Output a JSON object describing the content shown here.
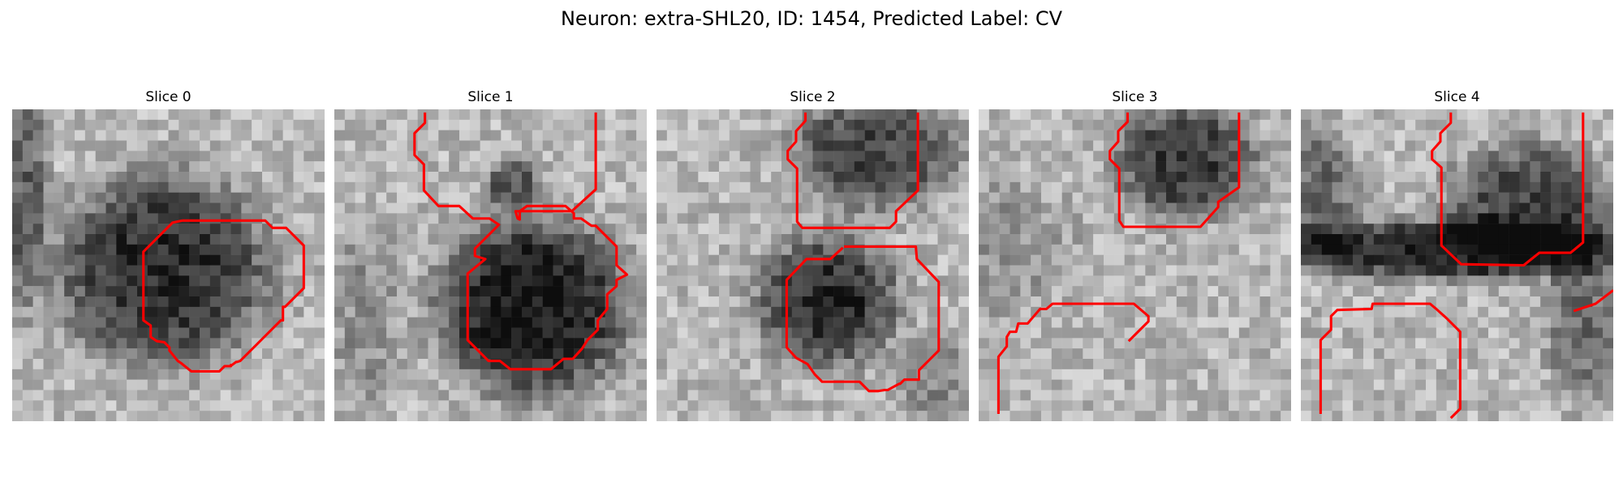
{
  "figure": {
    "title": "Neuron: extra-SHL20, ID: 1454, Predicted Label: CV"
  },
  "panels": [
    {
      "title": "Slice 0"
    },
    {
      "title": "Slice 1"
    },
    {
      "title": "Slice 2"
    },
    {
      "title": "Slice 3"
    },
    {
      "title": "Slice 4"
    }
  ],
  "colors": {
    "contour": "#ff0000",
    "background": "#ffffff"
  }
}
